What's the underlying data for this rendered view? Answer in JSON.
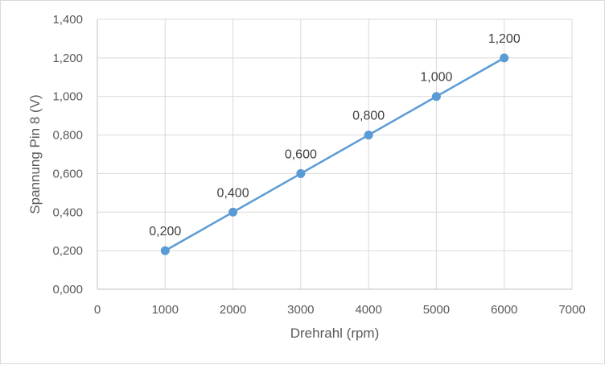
{
  "chart_data": {
    "type": "scatter",
    "title": "",
    "xlabel": "Drehrahl (rpm)",
    "ylabel": "Spannung Pin 8 (V)",
    "xlim": [
      0,
      7000
    ],
    "ylim": [
      0,
      1.4
    ],
    "x_ticks": [
      "0",
      "1000",
      "2000",
      "3000",
      "4000",
      "5000",
      "6000",
      "7000"
    ],
    "y_ticks": [
      "0,000",
      "0,200",
      "0,400",
      "0,600",
      "0,800",
      "1,000",
      "1,200",
      "1,400"
    ],
    "grid": true,
    "legend": "none",
    "series": [
      {
        "x": [
          1000,
          2000,
          3000,
          4000,
          5000,
          6000
        ],
        "y": [
          0.2,
          0.4,
          0.6,
          0.8,
          1.0,
          1.2
        ],
        "labels": [
          "0,200",
          "0,400",
          "0,600",
          "0,800",
          "1,000",
          "1,200"
        ],
        "color": "#5b9bd5",
        "style": "line-with-markers"
      }
    ]
  }
}
